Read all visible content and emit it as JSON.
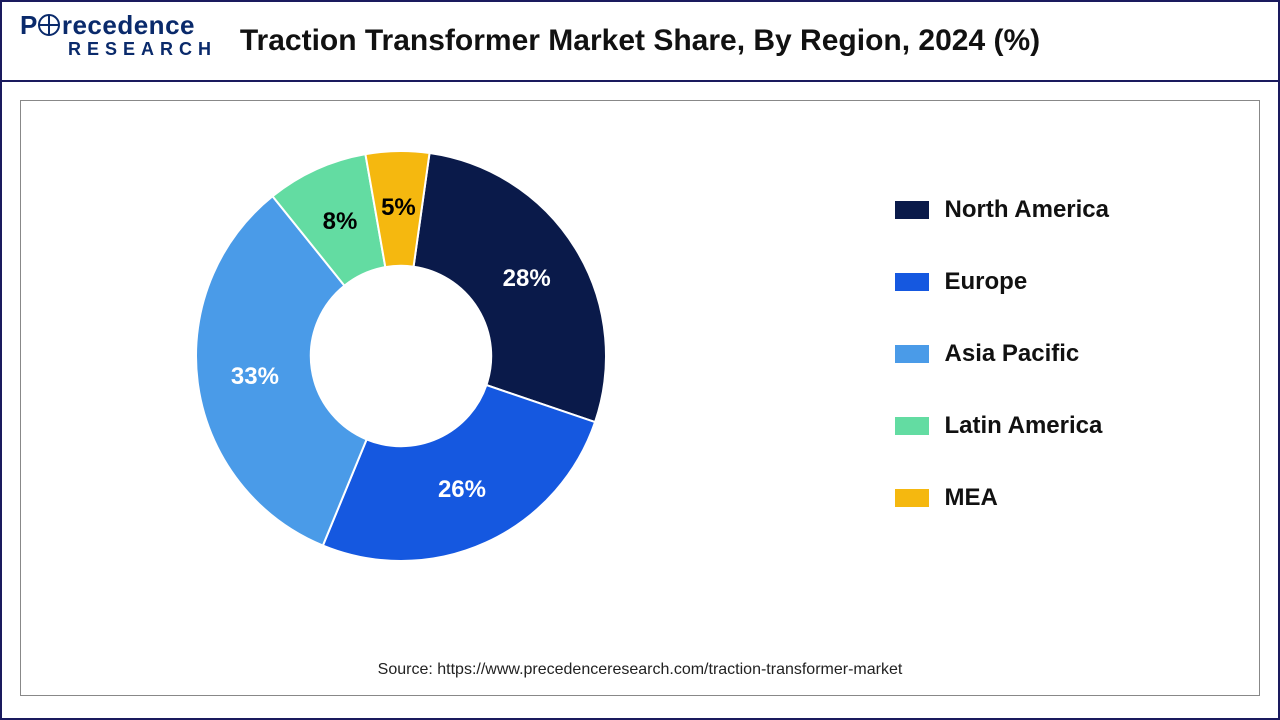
{
  "logo": {
    "line1_prefix": "P",
    "line1_rest": "recedence",
    "line2": "RESEARCH"
  },
  "title": "Traction Transformer Market Share, By Region, 2024 (%)",
  "chart": {
    "type": "donut",
    "inner_radius_ratio": 0.44,
    "background_color": "#ffffff",
    "outer_border_color": "#1a1a5e",
    "inner_panel_border": "#888888",
    "label_fontsize": 24,
    "legend_fontsize": 24,
    "title_fontsize": 30,
    "start_angle_deg": 8,
    "slices": [
      {
        "name": "North America",
        "value": 28,
        "color": "#0a1a4a",
        "label_color": "#ffffff"
      },
      {
        "name": "Europe",
        "value": 26,
        "color": "#1558e0",
        "label_color": "#ffffff"
      },
      {
        "name": "Asia Pacific",
        "value": 33,
        "color": "#4a9be8",
        "label_color": "#ffffff"
      },
      {
        "name": "Latin America",
        "value": 8,
        "color": "#63dca2",
        "label_color": "#000000"
      },
      {
        "name": "MEA",
        "value": 5,
        "color": "#f5b80f",
        "label_color": "#000000"
      }
    ]
  },
  "source": "Source: https://www.precedenceresearch.com/traction-transformer-market"
}
